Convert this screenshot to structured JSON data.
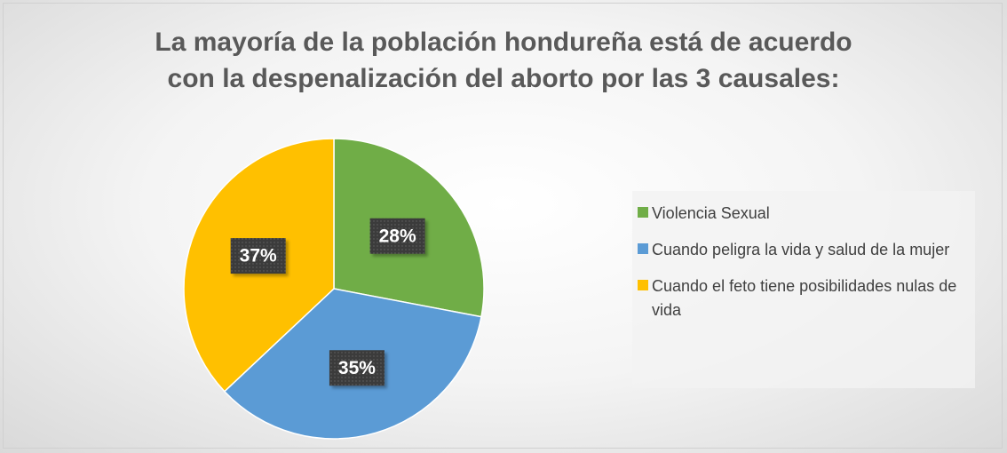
{
  "chart_data": {
    "type": "pie",
    "title": [
      "La mayoría de la población hondureña está de acuerdo",
      "con la despenalización del aborto por las 3 causales:"
    ],
    "categories": [
      "Violencia Sexual",
      "Cuando peligra la vida y salud de la mujer",
      "Cuando el feto tiene posibilidades nulas de vida"
    ],
    "values": [
      28,
      35,
      37
    ],
    "value_labels": [
      "28%",
      "35%",
      "37%"
    ],
    "colors": [
      "#70ad47",
      "#5b9bd5",
      "#ffc000"
    ],
    "legend": "right"
  }
}
